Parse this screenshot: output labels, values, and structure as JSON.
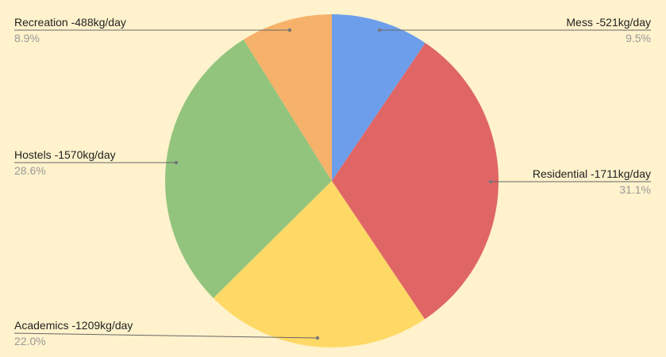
{
  "chart_data": {
    "type": "pie",
    "title": "",
    "start": "top",
    "direction": "clockwise",
    "background": "#fff2cc",
    "slices": [
      {
        "label": "Mess -521kg/day",
        "value": 521,
        "percent_label": "9.5%",
        "color": "#6d9eeb"
      },
      {
        "label": "Residential -1711kg/day",
        "value": 1711,
        "percent_label": "31.1%",
        "color": "#e06666"
      },
      {
        "label": "Academics -1209kg/day",
        "value": 1209,
        "percent_label": "22.0%",
        "color": "#ffd966"
      },
      {
        "label": "Hostels -1570kg/day",
        "value": 1570,
        "percent_label": "28.6%",
        "color": "#93c47d"
      },
      {
        "label": "Recreation -488kg/day",
        "value": 488,
        "percent_label": "8.9%",
        "color": "#f6b26b"
      }
    ],
    "legend": "leader-line labels"
  }
}
